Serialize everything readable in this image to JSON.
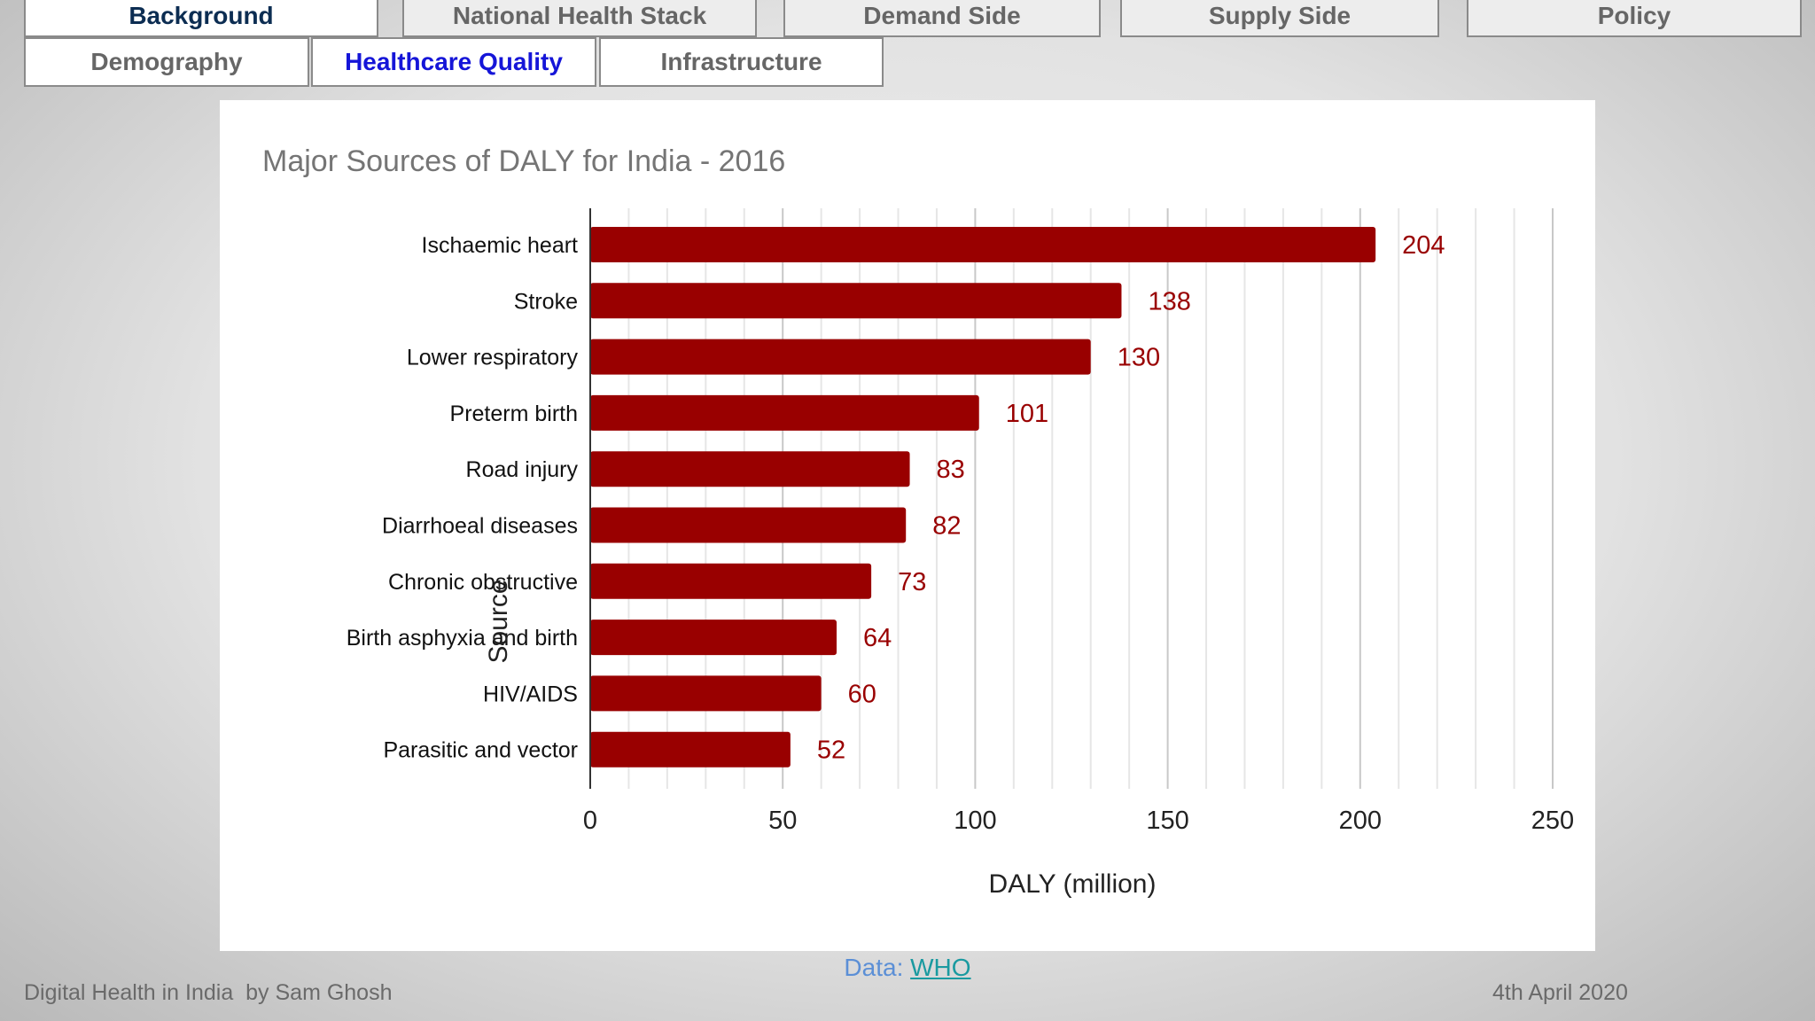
{
  "nav": {
    "primary_tabs": [
      "Background",
      "National Health Stack",
      "Demand Side",
      "Supply Side",
      "Policy"
    ],
    "sub_tabs": [
      "Demography",
      "Healthcare Quality",
      "Infrastructure"
    ]
  },
  "chart_data": {
    "type": "bar",
    "orientation": "horizontal",
    "title": "Major Sources of DALY for India - 2016",
    "xlabel": "DALY (million)",
    "ylabel": "Source",
    "categories": [
      "Ischaemic heart",
      "Stroke",
      "Lower respiratory",
      "Preterm birth",
      "Road injury",
      "Diarrhoeal diseases",
      "Chronic obstructive",
      "Birth asphyxia and birth",
      "HIV/AIDS",
      "Parasitic and vector"
    ],
    "values": [
      204,
      138,
      130,
      101,
      83,
      82,
      73,
      64,
      60,
      52
    ],
    "data_labels": [
      "204",
      "138",
      "130",
      "101",
      "83",
      "82",
      "73",
      "64",
      "60",
      "52"
    ],
    "xlim": [
      0,
      250
    ],
    "xticks": [
      0,
      50,
      100,
      150,
      200,
      250
    ],
    "xtick_labels": [
      "0",
      "50",
      "100",
      "150",
      "200",
      "250"
    ],
    "grid": "vertical",
    "bar_color": "#990000",
    "label_color": "#990000"
  },
  "credit": {
    "prefix": "Data: ",
    "link": "WHO"
  },
  "footer": {
    "left": "Digital Health in India  by Sam Ghosh",
    "right": "4th April 2020"
  }
}
